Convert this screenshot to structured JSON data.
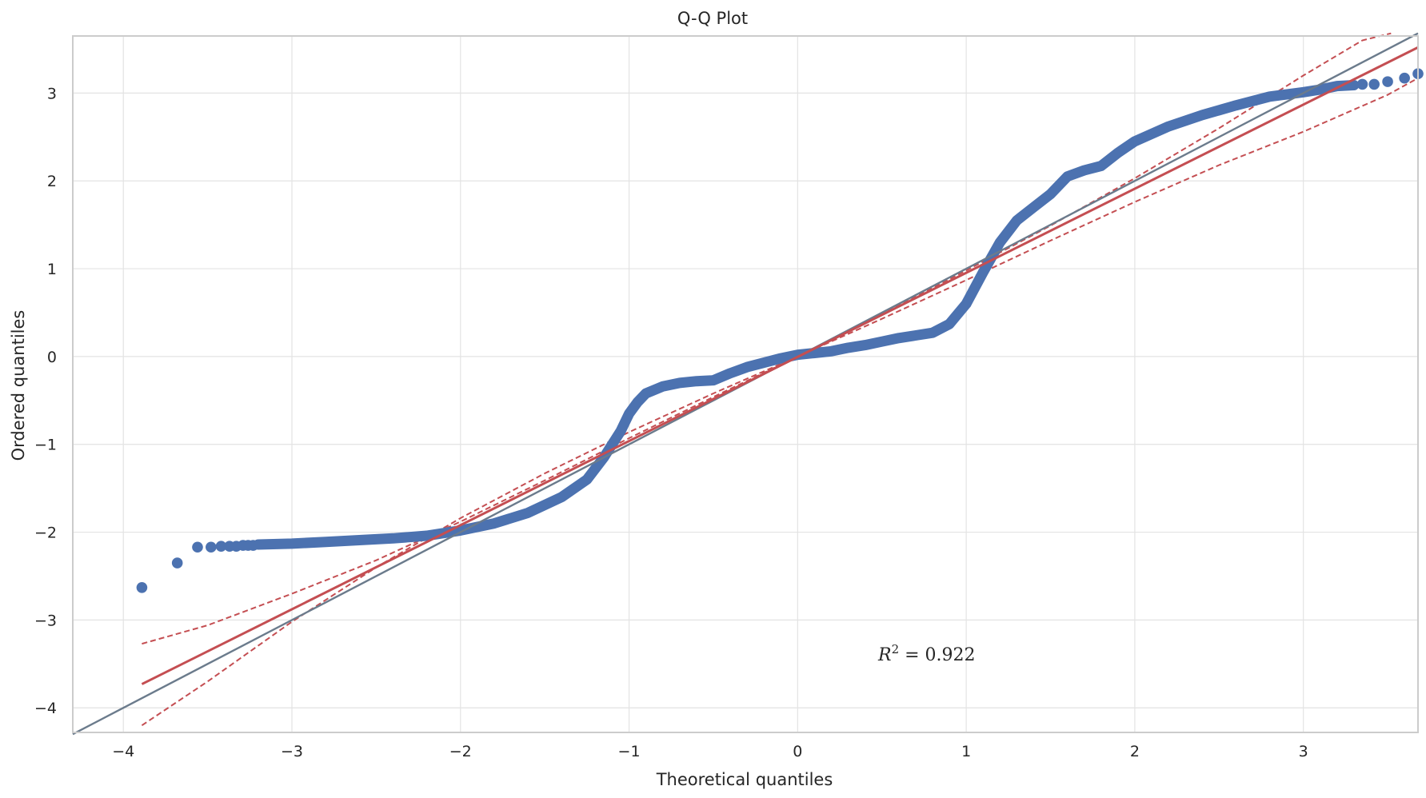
{
  "chart_data": {
    "type": "scatter",
    "title": "Q-Q Plot",
    "xlabel": "Theoretical quantiles",
    "ylabel": "Ordered quantiles",
    "xlim": [
      -4.3,
      3.68
    ],
    "ylim": [
      -4.28,
      3.65
    ],
    "x_ticks": [
      -4,
      -3,
      -2,
      -1,
      0,
      1,
      2,
      3
    ],
    "x_tick_labels": [
      "−4",
      "−3",
      "−2",
      "−1",
      "0",
      "1",
      "2",
      "3"
    ],
    "y_ticks": [
      -4,
      -3,
      -2,
      -1,
      0,
      1,
      2,
      3
    ],
    "y_tick_labels": [
      "−4",
      "−3",
      "−2",
      "−1",
      "0",
      "1",
      "2",
      "3"
    ],
    "grid": true,
    "annotation": {
      "r2_label": "R",
      "r2_exp": "2",
      "r2_value": " = 0.922"
    },
    "colors": {
      "points": "#4c72b0",
      "fit": "#c44e52",
      "reference": "#6b7b8c",
      "grid": "#e3e3e3",
      "spine": "#cccccc"
    },
    "points": {
      "x": [
        -3.89,
        -3.68,
        -3.56,
        -3.48,
        -3.42,
        -3.37,
        -3.33,
        -3.29,
        -3.26,
        -3.23,
        -3.2,
        -3.0,
        -2.8,
        -2.6,
        -2.4,
        -2.2,
        -2.0,
        -1.8,
        -1.6,
        -1.4,
        -1.25,
        -1.15,
        -1.05,
        -1.0,
        -0.95,
        -0.9,
        -0.8,
        -0.7,
        -0.6,
        -0.5,
        -0.4,
        -0.3,
        -0.2,
        -0.1,
        0.0,
        0.1,
        0.2,
        0.3,
        0.4,
        0.5,
        0.6,
        0.7,
        0.8,
        0.9,
        1.0,
        1.1,
        1.2,
        1.3,
        1.4,
        1.5,
        1.6,
        1.7,
        1.8,
        1.9,
        2.0,
        2.2,
        2.4,
        2.6,
        2.8,
        3.0,
        3.1,
        3.2,
        3.3,
        3.35,
        3.42,
        3.5,
        3.6,
        3.68
      ],
      "y": [
        -2.63,
        -2.35,
        -2.17,
        -2.17,
        -2.16,
        -2.16,
        -2.16,
        -2.15,
        -2.15,
        -2.15,
        -2.14,
        -2.13,
        -2.11,
        -2.09,
        -2.07,
        -2.04,
        -1.98,
        -1.9,
        -1.78,
        -1.6,
        -1.4,
        -1.15,
        -0.85,
        -0.65,
        -0.52,
        -0.42,
        -0.34,
        -0.3,
        -0.28,
        -0.27,
        -0.19,
        -0.12,
        -0.07,
        -0.02,
        0.02,
        0.04,
        0.06,
        0.1,
        0.13,
        0.17,
        0.21,
        0.24,
        0.27,
        0.37,
        0.6,
        0.96,
        1.3,
        1.55,
        1.7,
        1.85,
        2.05,
        2.12,
        2.17,
        2.32,
        2.45,
        2.62,
        2.75,
        2.86,
        2.96,
        3.01,
        3.04,
        3.08,
        3.09,
        3.1,
        3.1,
        3.13,
        3.17,
        3.22
      ]
    },
    "fit_line": {
      "x": [
        -3.89,
        3.68
      ],
      "y": [
        -3.73,
        3.52
      ]
    },
    "reference_line": {
      "x": [
        -4.3,
        3.68
      ],
      "y": [
        -4.3,
        3.68
      ]
    },
    "conf_upper": {
      "x": [
        -3.89,
        -3.5,
        -3.0,
        -2.5,
        -2.0,
        -1.5,
        -1.0,
        -0.5,
        0.0,
        0.5,
        1.0,
        1.5,
        2.0,
        2.5,
        3.0,
        3.35,
        3.52
      ],
      "y": [
        -3.27,
        -3.06,
        -2.7,
        -2.32,
        -1.88,
        -1.41,
        -0.93,
        -0.46,
        0.0,
        0.49,
        0.98,
        1.49,
        2.03,
        2.6,
        3.2,
        3.6,
        3.68
      ]
    },
    "conf_lower": {
      "x": [
        -3.89,
        -3.5,
        -3.0,
        -2.5,
        -2.0,
        -1.5,
        -1.0,
        -0.5,
        0.0,
        0.5,
        1.0,
        1.5,
        2.0,
        2.5,
        3.0,
        3.5,
        3.68
      ],
      "y": [
        -4.2,
        -3.7,
        -3.02,
        -2.4,
        -1.84,
        -1.33,
        -0.86,
        -0.42,
        0.0,
        0.43,
        0.87,
        1.32,
        1.76,
        2.18,
        2.56,
        2.98,
        3.17
      ]
    }
  }
}
